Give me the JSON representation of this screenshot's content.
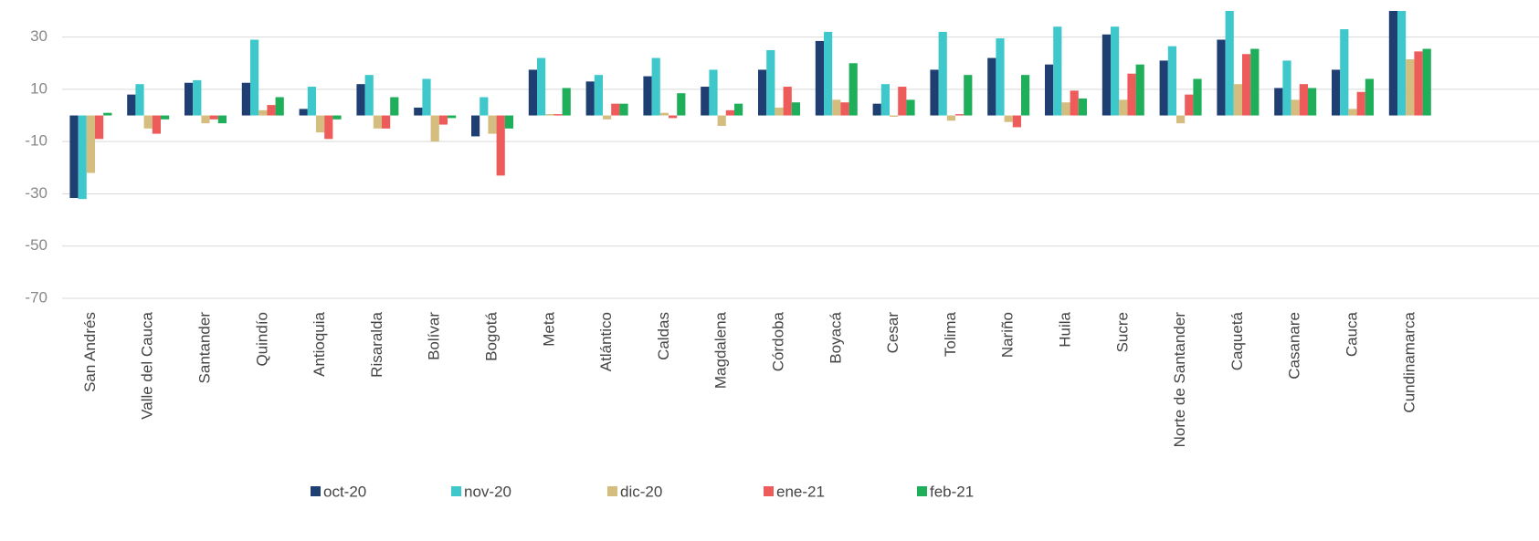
{
  "chart_data": {
    "type": "bar",
    "categories": [
      "San Andrés",
      "Valle del Cauca",
      "Santander",
      "Quindío",
      "Antioquia",
      "Risaralda",
      "Bolívar",
      "Bogotá",
      "Meta",
      "Atlántico",
      "Caldas",
      "Magdalena",
      "Córdoba",
      "Boyacá",
      "Cesar",
      "Tolima",
      "Nariño",
      "Huila",
      "Sucre",
      "Norte de Santander",
      "Caquetá",
      "Casanare",
      "Cauca",
      "Cundinamarca"
    ],
    "series": [
      {
        "name": "oct-20",
        "color": "#1f3f73",
        "values": [
          -31.6,
          8,
          12.5,
          12.5,
          2.5,
          12,
          3,
          -8,
          17.5,
          13,
          15,
          11,
          17.5,
          28.5,
          4.5,
          17.5,
          22,
          19.5,
          31,
          21,
          29,
          10.5,
          17.5,
          40
        ]
      },
      {
        "name": "nov-20",
        "color": "#3fc8cc",
        "values": [
          -32,
          12,
          13.5,
          29,
          11,
          15.5,
          14,
          7,
          22,
          15.5,
          22,
          17.5,
          25,
          32,
          12,
          32,
          29.5,
          34,
          34,
          26.5,
          40,
          21,
          33,
          40
        ]
      },
      {
        "name": "dic-20",
        "color": "#d4bd7f",
        "values": [
          -22,
          -5,
          -3,
          2,
          -6.5,
          -5,
          -10,
          -7,
          0.5,
          -1.5,
          1,
          -4,
          3,
          6,
          -0.5,
          -2,
          -2.5,
          5,
          6,
          -3,
          12,
          6,
          2.5,
          21.5
        ]
      },
      {
        "name": "ene-21",
        "color": "#ee5b5b",
        "values": [
          -9,
          -7,
          -1.5,
          4,
          -9,
          -5,
          -3.5,
          -23,
          0.5,
          4.5,
          -1,
          2,
          11,
          5,
          11,
          0.5,
          -4.5,
          9.5,
          16,
          8,
          23.5,
          12,
          9,
          24.5
        ]
      },
      {
        "name": "feb-21",
        "color": "#1fae5a",
        "values": [
          1,
          -1.5,
          -3,
          7,
          -1.5,
          7,
          -1,
          -5,
          10.5,
          4.5,
          8.5,
          4.5,
          5,
          20,
          6,
          15.5,
          15.5,
          6.5,
          19.5,
          14,
          25.5,
          10.5,
          14,
          25.5
        ]
      }
    ],
    "ylim": [
      -70,
      40
    ],
    "yticks": [
      -70,
      -50,
      -30,
      -10,
      10,
      30
    ],
    "grid": true,
    "legend": "bottom"
  }
}
